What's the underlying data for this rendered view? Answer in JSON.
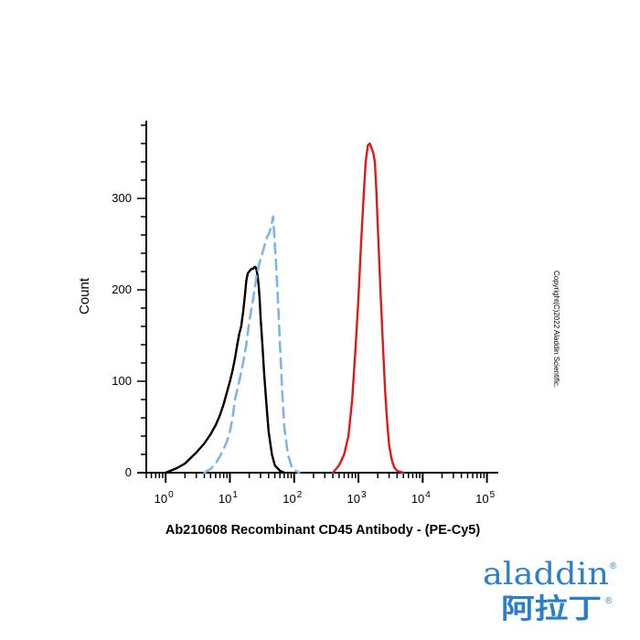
{
  "chart_data": {
    "type": "line",
    "xscale": "log",
    "xlim": [
      0.5,
      150000
    ],
    "ylim": [
      0,
      385
    ],
    "ylabel": "Count",
    "xlabel": "Ab210608 Recombinant CD45 Antibody - (PE-Cy5)",
    "yticks": [
      0,
      100,
      200,
      300
    ],
    "ytick_labels": [
      "0",
      "100",
      "200",
      "300"
    ],
    "xtick_base_labels": [
      "10",
      "10",
      "10",
      "10",
      "10",
      "10"
    ],
    "xtick_exponents": [
      "0",
      "1",
      "2",
      "3",
      "4",
      "5"
    ],
    "grid": false,
    "series": [
      {
        "color": "#000000",
        "style": "solid",
        "x": [
          1.0,
          1.5,
          2.0,
          3.0,
          4.0,
          5.0,
          6.0,
          7.0,
          8.0,
          9.0,
          10.0,
          11.0,
          12.0,
          13.0,
          14.0,
          15.0,
          16.0,
          17.0,
          18.0,
          19.0,
          20.0,
          21.0,
          22.0,
          23.0,
          24.0,
          25.0,
          26.0,
          27.0,
          28.0,
          29.0,
          30.0,
          32.0,
          34.0,
          37.0,
          40.0,
          45.0,
          50.0,
          60.0,
          70.0
        ],
        "y": [
          0,
          5,
          10,
          22,
          32,
          42,
          52,
          63,
          75,
          88,
          100,
          112,
          125,
          140,
          152,
          160,
          175,
          192,
          210,
          218,
          220,
          222,
          223,
          223,
          225,
          225,
          222,
          215,
          205,
          190,
          170,
          140,
          110,
          75,
          45,
          20,
          8,
          2,
          0
        ]
      },
      {
        "color": "#7fb5e6",
        "style": "dashed",
        "x": [
          4.0,
          5.0,
          6.0,
          7.0,
          8.0,
          9.0,
          10.0,
          11.0,
          12.0,
          14.0,
          16.0,
          18.0,
          20.0,
          23.0,
          26.0,
          29.0,
          32.0,
          35.0,
          38.0,
          41.0,
          44.0,
          47.0,
          50.0,
          55.0,
          60.0,
          65.0,
          70.0,
          80.0,
          90.0,
          100.0,
          120.0
        ],
        "y": [
          0,
          4,
          10,
          18,
          26,
          34,
          45,
          60,
          80,
          100,
          120,
          140,
          165,
          190,
          215,
          230,
          240,
          250,
          258,
          262,
          270,
          280,
          250,
          200,
          140,
          90,
          50,
          20,
          8,
          3,
          0
        ]
      },
      {
        "color": "#dd1a1a",
        "style": "solid",
        "x": [
          400,
          500,
          600,
          700,
          800,
          900,
          1000,
          1100,
          1200,
          1300,
          1400,
          1500,
          1600,
          1700,
          1800,
          1900,
          2000,
          2200,
          2400,
          2600,
          2800,
          3000,
          3300,
          3600,
          4000,
          4500,
          5000
        ],
        "y": [
          0,
          8,
          20,
          40,
          80,
          135,
          190,
          250,
          300,
          340,
          358,
          360,
          355,
          350,
          340,
          310,
          270,
          200,
          140,
          90,
          55,
          30,
          14,
          6,
          2,
          1,
          0
        ]
      }
    ]
  },
  "watermark": {
    "copyright": "Copyright(C)2022 Aladdin Scientific.",
    "logo_latin": "aladdin",
    "logo_cjk": "阿拉丁",
    "logo_registered": "®",
    "logo_color": "#2a7fc9",
    "logo_accent_color": "#d4a017"
  }
}
